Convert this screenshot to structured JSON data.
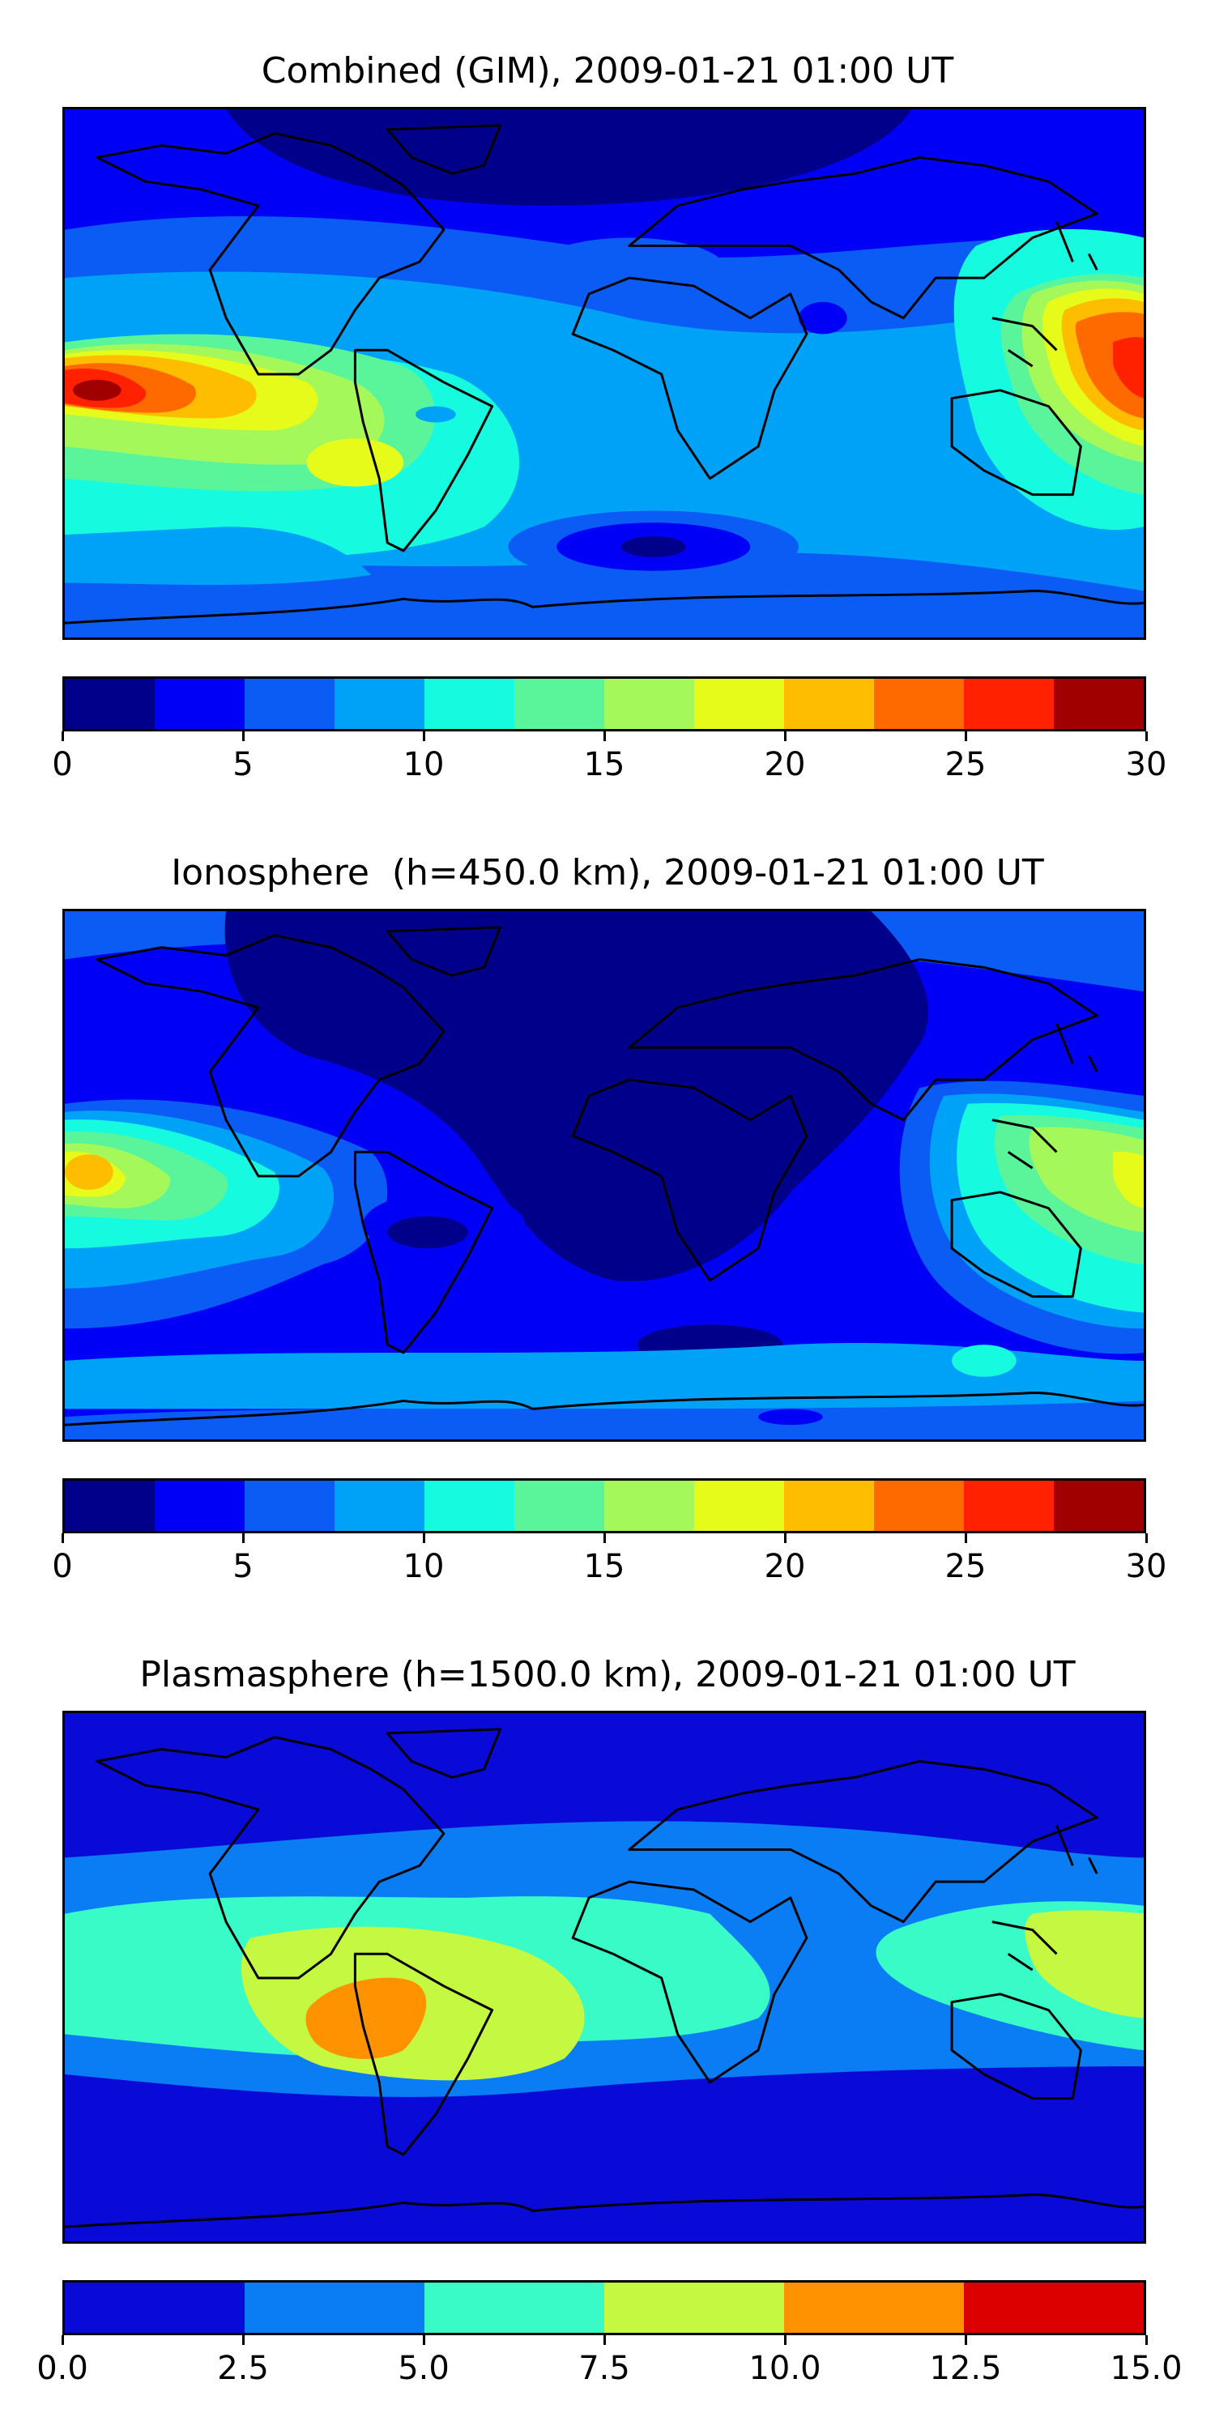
{
  "panels": [
    {
      "title": "Combined (GIM), 2009-01-21 01:00 UT",
      "colorbar": {
        "colors": [
          "#00008b",
          "#0000f6",
          "#0a5cf5",
          "#00a2f8",
          "#16fbe0",
          "#5af59a",
          "#a5f85a",
          "#e6fb19",
          "#ffbd00",
          "#ff6a00",
          "#ff2100",
          "#a10000"
        ],
        "tick_values": [
          0,
          5,
          10,
          15,
          20,
          25,
          30
        ],
        "tick_labels": [
          "0",
          "5",
          "10",
          "15",
          "20",
          "25",
          "30"
        ],
        "range": [
          0,
          30
        ]
      }
    },
    {
      "title": "Ionosphere  (h=450.0 km), 2009-01-21 01:00 UT",
      "colorbar": {
        "colors": [
          "#00008b",
          "#0000f6",
          "#0a5cf5",
          "#00a2f8",
          "#16fbe0",
          "#5af59a",
          "#a5f85a",
          "#e6fb19",
          "#ffbd00",
          "#ff6a00",
          "#ff2100",
          "#a10000"
        ],
        "tick_values": [
          0,
          5,
          10,
          15,
          20,
          25,
          30
        ],
        "tick_labels": [
          "0",
          "5",
          "10",
          "15",
          "20",
          "25",
          "30"
        ],
        "range": [
          0,
          30
        ]
      }
    },
    {
      "title": "Plasmasphere (h=1500.0 km), 2009-01-21 01:00 UT",
      "colorbar": {
        "colors": [
          "#0a0ad8",
          "#0a7df5",
          "#38fbc8",
          "#c5f840",
          "#ff9200",
          "#dd0000"
        ],
        "tick_values": [
          0.0,
          2.5,
          5.0,
          7.5,
          10.0,
          12.5,
          15.0
        ],
        "tick_labels": [
          "0.0",
          "2.5",
          "5.0",
          "7.5",
          "10.0",
          "12.5",
          "15.0"
        ],
        "range": [
          0,
          15
        ]
      }
    }
  ]
}
